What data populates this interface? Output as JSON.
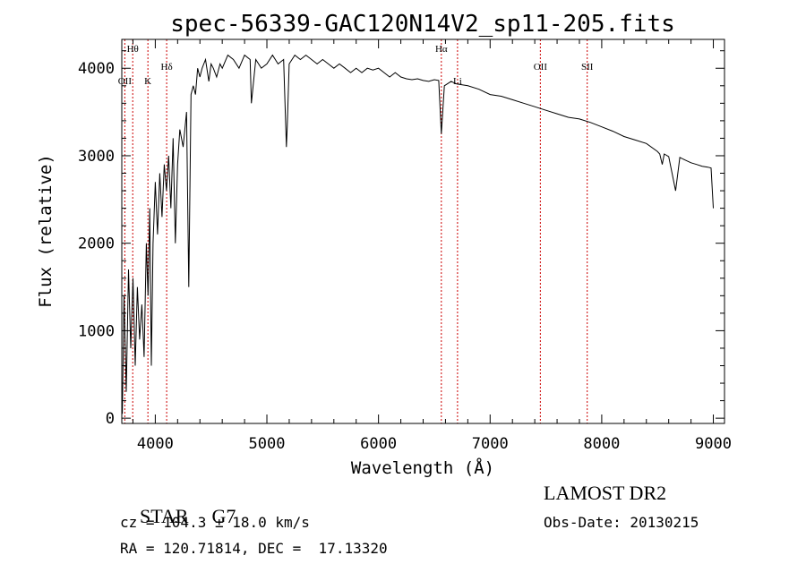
{
  "chart_data": {
    "type": "line",
    "title": "spec-56339-GAC120N14V2_sp11-205.fits",
    "xlabel": "Wavelength (Å)",
    "ylabel": "Flux (relative)",
    "xlim": [
      3700,
      9100
    ],
    "ylim": [
      -60,
      4330
    ],
    "xticks": [
      4000,
      5000,
      6000,
      7000,
      8000,
      9000
    ],
    "yticks": [
      0,
      1000,
      2000,
      3000,
      4000
    ],
    "grid": false,
    "legend": "none",
    "line_color": "#000000",
    "marker_color": "#cc0000",
    "series": [
      {
        "x": [
          3705,
          3720,
          3740,
          3760,
          3780,
          3800,
          3820,
          3840,
          3860,
          3880,
          3900,
          3920,
          3935,
          3950,
          3965,
          3980,
          4000,
          4020,
          4040,
          4060,
          4080,
          4100,
          4120,
          4140,
          4160,
          4180,
          4200,
          4220,
          4250,
          4280,
          4300,
          4320,
          4340,
          4360,
          4380,
          4400,
          4420,
          4450,
          4480,
          4500,
          4520,
          4550,
          4580,
          4600,
          4650,
          4700,
          4750,
          4800,
          4850,
          4861,
          4900,
          4950,
          5000,
          5050,
          5100,
          5150,
          5175,
          5183,
          5200,
          5250,
          5300,
          5350,
          5400,
          5450,
          5500,
          5550,
          5600,
          5650,
          5700,
          5750,
          5800,
          5850,
          5900,
          5950,
          6000,
          6050,
          6100,
          6150,
          6200,
          6250,
          6300,
          6350,
          6400,
          6450,
          6500,
          6540,
          6563,
          6590,
          6650,
          6700,
          6800,
          6900,
          7000,
          7100,
          7200,
          7300,
          7400,
          7500,
          7600,
          7700,
          7800,
          7900,
          8000,
          8100,
          8200,
          8300,
          8400,
          8498,
          8520,
          8542,
          8560,
          8600,
          8662,
          8700,
          8750,
          8800,
          8850,
          8900,
          8950,
          8980,
          9000
        ],
        "y": [
          50,
          1400,
          300,
          1700,
          800,
          1600,
          600,
          1500,
          900,
          1300,
          700,
          2000,
          1400,
          2400,
          600,
          2000,
          2700,
          2100,
          2800,
          2300,
          2900,
          2600,
          3000,
          2400,
          3200,
          2000,
          2900,
          3300,
          3100,
          3500,
          1500,
          3700,
          3800,
          3700,
          4000,
          3900,
          4000,
          4100,
          3850,
          4050,
          4000,
          3900,
          4050,
          4000,
          4150,
          4100,
          4000,
          4150,
          4100,
          3600,
          4100,
          4000,
          4050,
          4150,
          4050,
          4100,
          3100,
          3350,
          4050,
          4150,
          4100,
          4150,
          4100,
          4050,
          4100,
          4050,
          4000,
          4050,
          4000,
          3950,
          4000,
          3950,
          4000,
          3980,
          4000,
          3950,
          3900,
          3950,
          3900,
          3880,
          3870,
          3880,
          3860,
          3850,
          3870,
          3860,
          3250,
          3800,
          3850,
          3820,
          3800,
          3760,
          3700,
          3680,
          3640,
          3600,
          3560,
          3520,
          3480,
          3440,
          3420,
          3380,
          3330,
          3280,
          3220,
          3180,
          3140,
          3050,
          3020,
          2900,
          3020,
          2990,
          2600,
          2980,
          2950,
          2920,
          2900,
          2880,
          2870,
          2860,
          2400
        ]
      }
    ],
    "line_labels": [
      {
        "label": "Hθ",
        "x": 3798
      },
      {
        "label": "OII",
        "x": 3727
      },
      {
        "label": "K",
        "x": 3934
      },
      {
        "label": "Hδ",
        "x": 4102
      },
      {
        "label": "Hα",
        "x": 6563
      },
      {
        "label": "Li",
        "x": 6708
      },
      {
        "label": "OII",
        "x": 7450
      },
      {
        "label": "SII",
        "x": 7870
      }
    ]
  },
  "info": {
    "class": "STAR",
    "subclass": "G7",
    "cz": "cz = 104.3 ± 18.0 km/s",
    "radec": "RA = 120.71814, DEC =  17.13320",
    "survey": "LAMOST DR2",
    "obsdate": "Obs-Date: 20130215"
  }
}
